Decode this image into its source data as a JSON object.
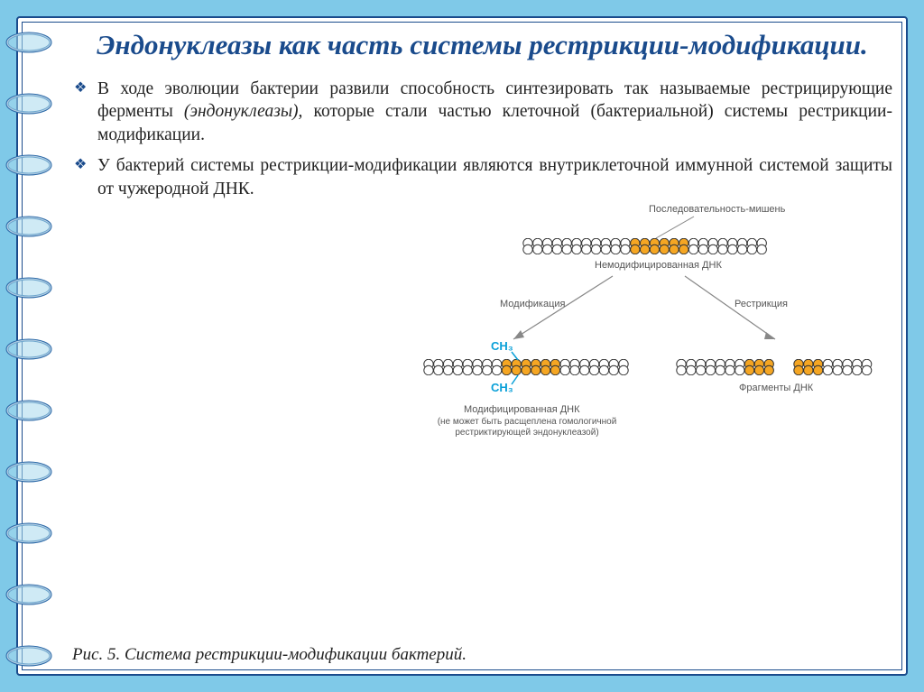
{
  "title": "Эндонуклеазы как часть системы рестрикции-модификации.",
  "bullets": [
    "В ходе эволюции бактерии развили способность синтезировать так называемые рестрицирующие ферменты (эндонуклеазы), которые стали частью клеточной (бактериальной) системы рестрикции-модификации.",
    "У бактерий системы рестрикции-модификации являются внутриклеточной иммунной системой защиты от чужеродной ДНК."
  ],
  "diagram": {
    "target_seq": "Последовательность-мишень",
    "unmodified": "Немодифицированная ДНК",
    "modification": "Модификация",
    "restriction": "Рестрикция",
    "ch3": "CH₃",
    "modified_dna": "Модифицированная ДНК",
    "modified_note": "(не может быть расщеплена гомологичной рестриктирующей эндонуклеазой)",
    "fragments": "Фрагменты ДНК",
    "dna_colors": {
      "link": "#333333",
      "target": "#f5a623",
      "plain": "#ffffff"
    }
  },
  "caption": "Рис. 5. Система рестрикции-модификации бактерий.",
  "colors": {
    "page_bg": "#7fc9e8",
    "frame": "#1a4b8c",
    "title": "#1a4b8c",
    "ring_fill": "#a8d8ec",
    "ring_stroke": "#2b6aa8"
  },
  "rings_count": 11
}
